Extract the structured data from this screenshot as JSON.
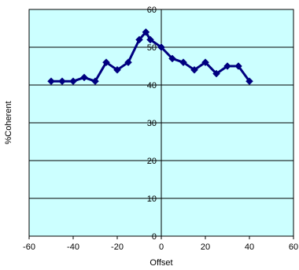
{
  "chart_data": {
    "type": "line",
    "title": "",
    "xlabel": "Offset",
    "ylabel": "%Coherent",
    "xlim": [
      -60,
      60
    ],
    "ylim": [
      0,
      60
    ],
    "x_ticks": [
      -60,
      -40,
      -20,
      0,
      20,
      40,
      60
    ],
    "y_ticks": [
      0,
      10,
      20,
      30,
      40,
      50,
      60
    ],
    "grid": "horizontal",
    "legend": "none",
    "plot_background": "#ccffff",
    "series": [
      {
        "color": "#000080",
        "marker": "diamond",
        "x": [
          -50,
          -45,
          -40,
          -35,
          -30,
          -25,
          -20,
          -15,
          -10,
          -7,
          -5,
          0,
          5,
          10,
          15,
          20,
          25,
          30,
          35,
          40
        ],
        "y": [
          41,
          41,
          41,
          42,
          41,
          46,
          44,
          46,
          52,
          54,
          52,
          50,
          47,
          46,
          44,
          46,
          43,
          45,
          45,
          41
        ]
      }
    ]
  }
}
